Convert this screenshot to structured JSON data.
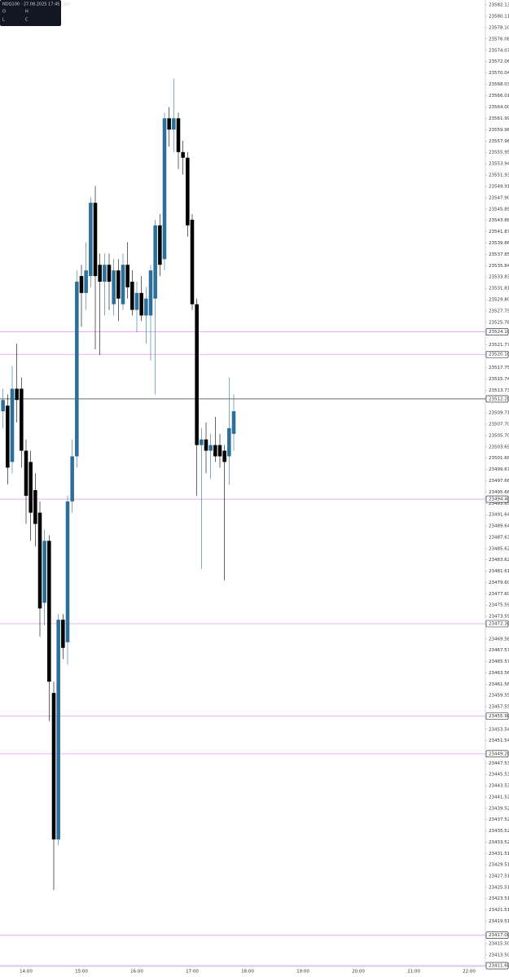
{
  "chart_data": {
    "type": "candlestick",
    "title": "NDQ100 · 27.08.2025 17:45 · 5m",
    "ohlc_labels": [
      "O",
      "H",
      "L",
      "C"
    ],
    "x": [
      "13:35",
      "13:40",
      "13:45",
      "13:50",
      "13:55",
      "14:00",
      "14:05",
      "14:10",
      "14:15",
      "14:20",
      "14:25",
      "14:30",
      "14:35",
      "14:40",
      "14:45",
      "14:50",
      "14:55",
      "15:00",
      "15:05",
      "15:10",
      "15:15",
      "15:20",
      "15:25",
      "15:30",
      "15:35",
      "15:40",
      "15:45",
      "15:50",
      "15:55",
      "16:00",
      "16:05",
      "16:10",
      "16:15",
      "16:20",
      "16:25",
      "16:30",
      "16:35",
      "16:40",
      "16:45",
      "16:50",
      "16:55",
      "17:00",
      "17:05",
      "17:10",
      "17:15",
      "17:20",
      "17:25",
      "17:30",
      "17:35",
      "17:40",
      "17:45"
    ],
    "open": [
      23510,
      23511,
      23501,
      23514,
      23514,
      23503,
      23501,
      23496,
      23492,
      23476,
      23487,
      23460,
      23434,
      23473,
      23469,
      23494,
      23502,
      23534,
      23531,
      23534,
      23547,
      23536,
      23533,
      23536,
      23529,
      23535,
      23529,
      23536,
      23533,
      23528,
      23531,
      23527,
      23527,
      23530,
      23543,
      23537,
      23562,
      23560,
      23562,
      23556,
      23555,
      23544,
      23529,
      23504,
      23505,
      23503,
      23504,
      23504,
      23503,
      23502,
      23506
    ],
    "high": [
      23514,
      23513,
      23518,
      23522,
      23516,
      23505,
      23503,
      23499,
      23494,
      23489,
      23488,
      23462,
      23474,
      23474,
      23495,
      23505,
      23535,
      23536,
      23540,
      23548,
      23550,
      23538,
      23538,
      23538,
      23537,
      23537,
      23538,
      23540,
      23535,
      23533,
      23534,
      23532,
      23536,
      23544,
      23545,
      23563,
      23564,
      23569,
      23563,
      23558,
      23556,
      23545,
      23530,
      23507,
      23508,
      23506,
      23509,
      23506,
      23504,
      23516,
      23513
    ],
    "low": [
      23507,
      23497,
      23499,
      23508,
      23500,
      23490,
      23487,
      23486,
      23470,
      23472,
      23455,
      23425,
      23433,
      23466,
      23465,
      23492,
      23500,
      23525,
      23528,
      23532,
      23521,
      23520,
      23527,
      23528,
      23527,
      23526,
      23528,
      23530,
      23527,
      23524,
      23526,
      23522,
      23519,
      23513,
      23534,
      23535,
      23557,
      23556,
      23553,
      23552,
      23541,
      23528,
      23495,
      23482,
      23499,
      23498,
      23501,
      23500,
      23480,
      23497,
      23503
    ],
    "close": [
      23512,
      23500,
      23514,
      23512,
      23503,
      23495,
      23492,
      23490,
      23475,
      23487,
      23462,
      23434,
      23473,
      23468,
      23494,
      23502,
      23533,
      23531,
      23535,
      23547,
      23534,
      23533,
      23536,
      23533,
      23535,
      23530,
      23536,
      23532,
      23528,
      23531,
      23527,
      23530,
      23535,
      23543,
      23536,
      23562,
      23560,
      23562,
      23556,
      23555,
      23543,
      23529,
      23504,
      23505,
      23503,
      23504,
      23502,
      23502,
      23501,
      23507,
      23510
    ],
    "up_color": "#2b6f9a",
    "down_color": "#000000",
    "ylim": [
      23411.46,
      23583.0
    ],
    "yticks": [
      23582.13,
      23580.11,
      {
        "value": 23578.1,
        "label": "23578.10"
      },
      23576.08,
      23574.07,
      23572.06,
      23570.04,
      23568.03,
      23566.01,
      {
        "value": 23564,
        "label": "23564.00"
      },
      23561.99,
      23559.98,
      23557.96,
      23555.95,
      23553.94,
      23551.93,
      23549.91,
      {
        "value": 23547.9,
        "label": "23547.90"
      },
      23545.89,
      23543.88,
      23541.87,
      23539.86,
      23537.85,
      23535.84,
      23533.83,
      23531.81,
      {
        "value": 23529.8,
        "label": "23529.80"
      },
      23527.79,
      23525.78,
      23521.77,
      23517.75,
      23515.74,
      23513.73,
      23509.71,
      {
        "value": 23507.7,
        "label": "23507.70"
      },
      {
        "value": 23505.7,
        "label": "23505.70"
      },
      23503.69,
      23501.68,
      23499.67,
      23497.66,
      23495.66,
      23493.65,
      23491.64,
      23489.64,
      23487.63,
      23485.62,
      23483.62,
      23481.61,
      {
        "value": 23479.6,
        "label": "23479.60"
      },
      {
        "value": 23477.6,
        "label": "23477.60"
      },
      23475.59,
      23473.59,
      23469.58,
      23467.57,
      23465.57,
      23463.56,
      23461.56,
      23459.55,
      23457.55,
      23453.54,
      23451.54,
      23447.53,
      23445.53,
      23443.53,
      23441.52,
      23439.52,
      23437.52,
      23435.52,
      23433.52,
      23431.51,
      23429.51,
      23427.51,
      23425.51,
      23423.51,
      23421.51,
      23419.51,
      {
        "value": 23415.5,
        "label": "23415.50"
      },
      {
        "value": 23413.5,
        "label": "23413.50"
      }
    ],
    "xticks": [
      "14:00",
      "15:00",
      "16:00",
      "17:00",
      "18:00",
      "19:00",
      "20:00",
      "21:00",
      "22:00"
    ],
    "levels": [
      {
        "value": 23524.1,
        "label": "23524.10"
      },
      {
        "value": 23520.1,
        "label": "23520.10"
      },
      {
        "value": 23494.4,
        "label": "23494.40"
      },
      {
        "value": 23472.3,
        "label": "23472.30"
      },
      {
        "value": 23455.9,
        "label": "23455.90"
      },
      {
        "value": 23449.2,
        "label": "23449.20"
      },
      {
        "value": 23417,
        "label": "23417.00"
      },
      {
        "value": 23411.6,
        "label": "23411.60"
      }
    ],
    "level_color": "#e49ef3",
    "current": {
      "value": 23512.2,
      "label": "23512.20"
    }
  }
}
